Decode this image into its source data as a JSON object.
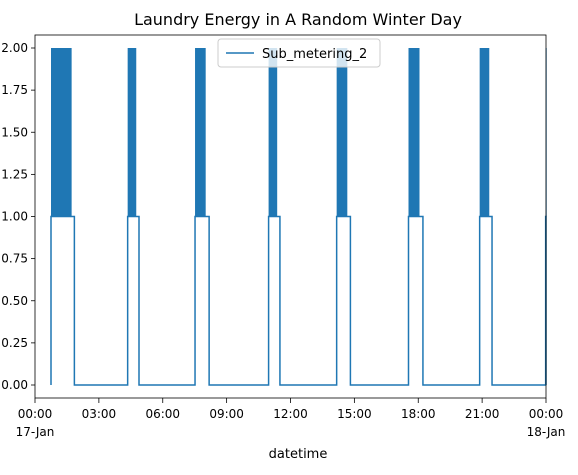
{
  "chart_data": {
    "type": "line",
    "title": "Laundry Energy in A Random Winter Day",
    "xlabel": "datetime",
    "ylabel": "",
    "xlim": [
      "2007-01-17 00:00",
      "2007-01-18 00:00"
    ],
    "ylim": [
      -0.1,
      2.1
    ],
    "x_ticks": [
      {
        "time": "00:00",
        "date": "17-Jan"
      },
      {
        "time": "03:00",
        "date": ""
      },
      {
        "time": "06:00",
        "date": ""
      },
      {
        "time": "09:00",
        "date": ""
      },
      {
        "time": "12:00",
        "date": ""
      },
      {
        "time": "15:00",
        "date": ""
      },
      {
        "time": "18:00",
        "date": ""
      },
      {
        "time": "21:00",
        "date": ""
      },
      {
        "time": "00:00",
        "date": "18-Jan"
      }
    ],
    "y_ticks": [
      "0.00",
      "0.25",
      "0.50",
      "0.75",
      "1.00",
      "1.25",
      "1.50",
      "1.75",
      "2.00"
    ],
    "grid": false,
    "legend_position": "top-center",
    "series": [
      {
        "name": "Sub_metering_2",
        "color": "#1f77b4",
        "baseline": 0,
        "active_level": 1,
        "spike_level": 2,
        "active_periods": [
          {
            "start": "00:00",
            "end": "01:08",
            "spikes_until": "01:00"
          },
          {
            "start": "03:43",
            "end": "04:16",
            "spikes_until": "04:08"
          },
          {
            "start": "06:59",
            "end": "07:40",
            "spikes_until": "07:30"
          },
          {
            "start": "10:33",
            "end": "11:06",
            "spikes_until": "10:58"
          },
          {
            "start": "13:51",
            "end": "14:31",
            "spikes_until": "14:22"
          },
          {
            "start": "17:20",
            "end": "18:02",
            "spikes_until": "17:52"
          },
          {
            "start": "20:47",
            "end": "21:23",
            "spikes_until": "21:15"
          },
          {
            "start": "23:59",
            "end": "24:00",
            "spikes_until": "24:00"
          }
        ]
      }
    ]
  }
}
